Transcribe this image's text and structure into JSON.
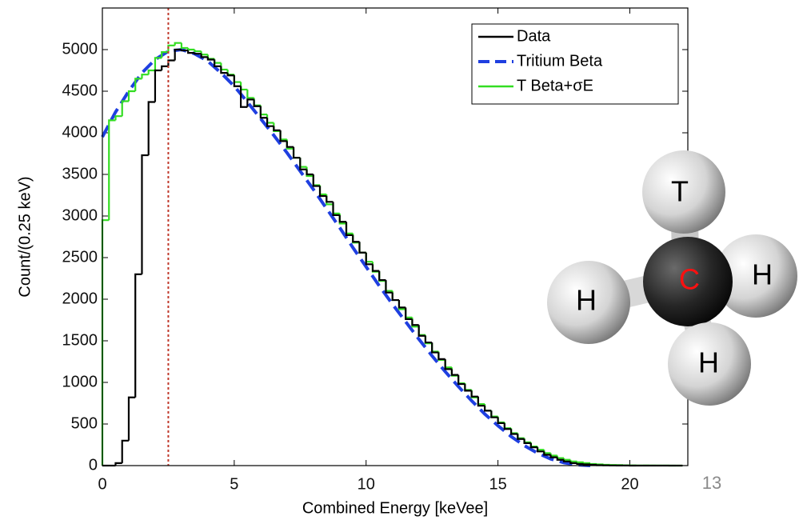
{
  "chart_data": {
    "type": "histogram",
    "xlabel": "Combined Energy [keVee]",
    "ylabel": "Count/(0.25 keV)",
    "xlim": [
      0,
      22.2
    ],
    "ylim": [
      0,
      5500
    ],
    "xticks": [
      0,
      5,
      10,
      15,
      20
    ],
    "yticks": [
      0,
      500,
      1000,
      1500,
      2000,
      2500,
      3000,
      3500,
      4000,
      4500,
      5000
    ],
    "legend": "upper right",
    "threshold": {
      "x": 2.5,
      "color": "#c0392b"
    },
    "bins": [
      0,
      0.25,
      0.5,
      0.75,
      1,
      1.25,
      1.5,
      1.75,
      2,
      2.25,
      2.5,
      2.75,
      3,
      3.25,
      3.5,
      3.75,
      4,
      4.25,
      4.5,
      4.75,
      5,
      5.25,
      5.5,
      5.75,
      6,
      6.25,
      6.5,
      6.75,
      7,
      7.25,
      7.5,
      7.75,
      8,
      8.25,
      8.5,
      8.75,
      9,
      9.25,
      9.5,
      9.75,
      10,
      10.25,
      10.5,
      10.75,
      11,
      11.25,
      11.5,
      11.75,
      12,
      12.25,
      12.5,
      12.75,
      13,
      13.25,
      13.5,
      13.75,
      14,
      14.25,
      14.5,
      14.75,
      15,
      15.25,
      15.5,
      15.75,
      16,
      16.25,
      16.5,
      16.75,
      17,
      17.25,
      17.5,
      17.75,
      18,
      18.25,
      18.5,
      18.75,
      19,
      19.25,
      19.5,
      19.75,
      20,
      20.25,
      20.5,
      20.75,
      21,
      21.25,
      21.5,
      21.75,
      22
    ],
    "series": [
      {
        "name": "Data",
        "style": "step",
        "color": "#000000",
        "values": [
          0,
          0,
          30,
          300,
          820,
          2300,
          3730,
          4370,
          4750,
          4800,
          4870,
          5000,
          4990,
          4960,
          4950,
          4910,
          4880,
          4800,
          4720,
          4690,
          4560,
          4310,
          4400,
          4320,
          4180,
          4080,
          4030,
          3900,
          3830,
          3700,
          3560,
          3500,
          3360,
          3240,
          3170,
          3010,
          2930,
          2770,
          2690,
          2560,
          2420,
          2340,
          2230,
          2080,
          1990,
          1900,
          1760,
          1690,
          1560,
          1480,
          1360,
          1280,
          1160,
          1090,
          980,
          900,
          830,
          720,
          660,
          580,
          510,
          440,
          380,
          320,
          270,
          220,
          170,
          130,
          100,
          70,
          50,
          30,
          20,
          15,
          10,
          5,
          3,
          2,
          1,
          1,
          0,
          0,
          0,
          0,
          0,
          0,
          0,
          0
        ]
      },
      {
        "name": "Tritium Beta",
        "style": "dashed",
        "color": "#1f3fe0",
        "x": [
          0,
          0.5,
          1,
          1.5,
          2,
          2.5,
          3,
          3.5,
          4,
          4.5,
          5,
          5.5,
          6,
          6.5,
          7,
          7.5,
          8,
          8.5,
          9,
          9.5,
          10,
          10.5,
          11,
          11.5,
          12,
          12.5,
          13,
          13.5,
          14,
          14.5,
          15,
          15.5,
          16,
          16.5,
          17,
          17.5,
          18,
          18.5
        ],
        "values": [
          3950,
          4250,
          4500,
          4720,
          4880,
          4980,
          5000,
          4950,
          4860,
          4720,
          4560,
          4370,
          4170,
          3970,
          3760,
          3540,
          3320,
          3090,
          2860,
          2620,
          2390,
          2160,
          1940,
          1730,
          1520,
          1320,
          1130,
          950,
          780,
          620,
          480,
          350,
          240,
          150,
          80,
          35,
          10,
          0
        ]
      },
      {
        "name": "T Beta+σE",
        "style": "step",
        "color": "#33dd22",
        "values": [
          2950,
          4150,
          4200,
          4380,
          4500,
          4650,
          4700,
          4750,
          4900,
          4970,
          5050,
          5080,
          5020,
          5000,
          4980,
          4940,
          4890,
          4840,
          4760,
          4700,
          4610,
          4520,
          4420,
          4330,
          4220,
          4120,
          4020,
          3920,
          3810,
          3700,
          3590,
          3480,
          3370,
          3260,
          3140,
          3030,
          2910,
          2790,
          2680,
          2560,
          2450,
          2330,
          2220,
          2100,
          1990,
          1880,
          1780,
          1670,
          1570,
          1470,
          1370,
          1270,
          1180,
          1080,
          990,
          910,
          820,
          740,
          660,
          590,
          520,
          450,
          390,
          330,
          280,
          230,
          190,
          150,
          120,
          90,
          70,
          50,
          40,
          30,
          20,
          15,
          10,
          8,
          6,
          4,
          3,
          2,
          2,
          1,
          1,
          1,
          0,
          0
        ]
      }
    ]
  },
  "molecule": {
    "atoms": [
      "T",
      "H",
      "H",
      "H",
      "C"
    ]
  },
  "slide_number": "13"
}
